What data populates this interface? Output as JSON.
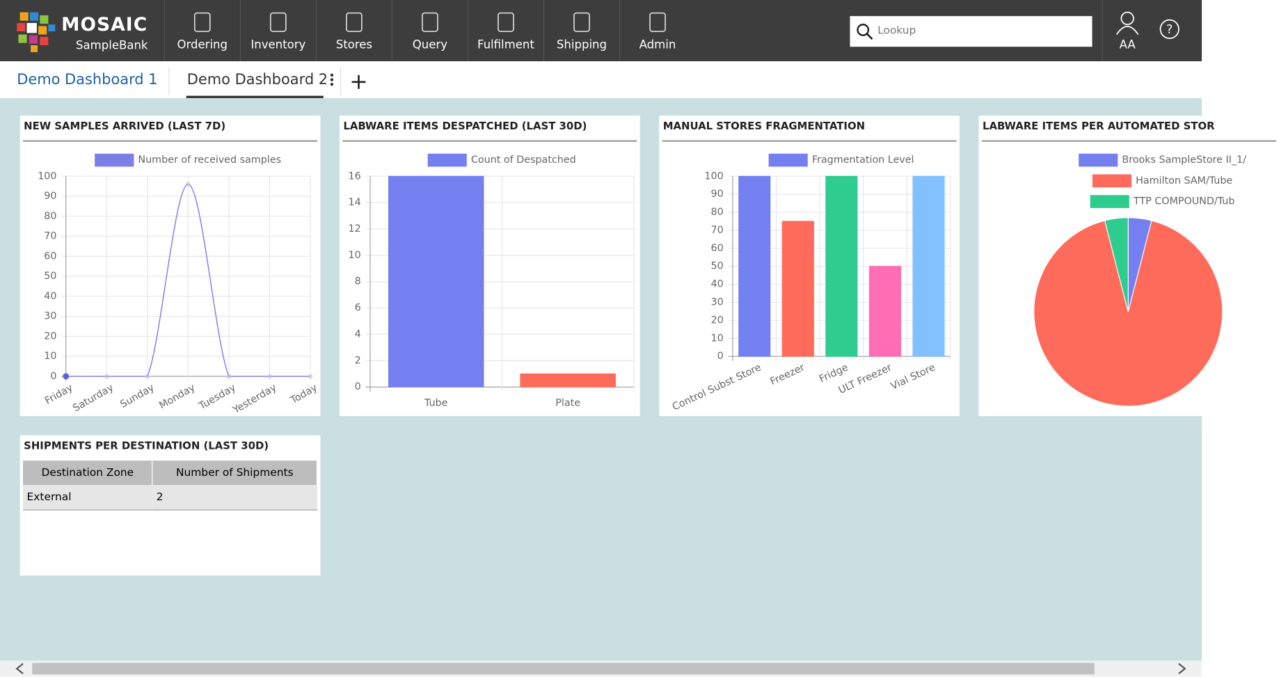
{
  "header": {
    "brand": "MOSAIC",
    "product": "SampleBank",
    "nav": [
      "Ordering",
      "Inventory",
      "Stores",
      "Query",
      "Fulfilment",
      "Shipping",
      "Admin"
    ],
    "search_placeholder": "Lookup",
    "user": "AA"
  },
  "tabs": [
    "Demo Dashboard 1",
    "Demo Dashboard 2"
  ],
  "chart_data": [
    {
      "type": "line",
      "title": "NEW SAMPLES ARRIVED (LAST 7D)",
      "categories": [
        "Friday",
        "Saturday",
        "Sunday",
        "Monday",
        "Tuesday",
        "Yesterday",
        "Today"
      ],
      "series": [
        {
          "name": "Number of received samples",
          "color": "#7b7fe6",
          "values": [
            0,
            0,
            0,
            96,
            0,
            0,
            0
          ]
        }
      ],
      "ylim": [
        0,
        100
      ],
      "yticks": [
        0,
        10,
        20,
        30,
        40,
        50,
        60,
        70,
        80,
        90,
        100
      ],
      "grid": true
    },
    {
      "type": "bar",
      "title": "LABWARE ITEMS DESPATCHED (LAST 30D)",
      "categories": [
        "Tube",
        "Plate"
      ],
      "series": [
        {
          "name": "Count of Despatched",
          "color": "#7580f0",
          "colors": [
            "#7580f0",
            "#ff6b5b"
          ],
          "values": [
            16,
            1
          ]
        }
      ],
      "ylim": [
        0,
        16
      ],
      "yticks": [
        0,
        2,
        4,
        6,
        8,
        10,
        12,
        14,
        16
      ],
      "grid": true
    },
    {
      "type": "bar",
      "title": "MANUAL STORES FRAGMENTATION",
      "categories": [
        "Control Subst Store",
        "Freezer",
        "Fridge",
        "ULT Freezer",
        "Vial Store"
      ],
      "series": [
        {
          "name": "Fragmentation Level",
          "color": "#7580f0",
          "colors": [
            "#7580f0",
            "#ff6b5b",
            "#2ecc8f",
            "#ff6eb4",
            "#82c0ff"
          ],
          "values": [
            100,
            75,
            100,
            50,
            100
          ]
        }
      ],
      "ylim": [
        0,
        100
      ],
      "yticks": [
        0,
        10,
        20,
        30,
        40,
        50,
        60,
        70,
        80,
        90,
        100
      ],
      "grid": true
    },
    {
      "type": "pie",
      "title": "LABWARE ITEMS PER AUTOMATED STOR",
      "categories": [
        "Brooks SampleStore II_1/",
        "Hamilton SAM/Tube",
        "TTP COMPOUND/Tub"
      ],
      "values": [
        4,
        92,
        4
      ],
      "colors": [
        "#7580f0",
        "#ff6b5b",
        "#2ecc8f"
      ]
    }
  ],
  "table": {
    "title": "SHIPMENTS PER DESTINATION (LAST 30D)",
    "columns": [
      "Destination Zone",
      "Number of Shipments"
    ],
    "rows": [
      [
        "External",
        2
      ]
    ]
  }
}
